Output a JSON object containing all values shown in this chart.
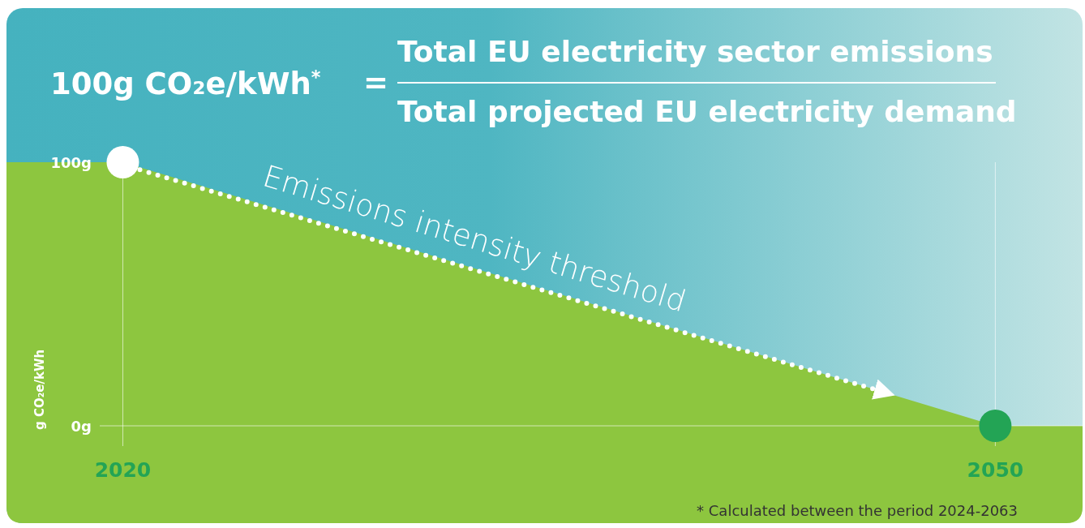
{
  "chart_data": {
    "type": "area",
    "title": "100g CO₂e/kWh$^{*}$",
    "ylabel": "g CO₂e/kWh",
    "annotations": [
      "=",
      "Total EU electricity sector emissions",
      "Total projected EU electricity demand",
      "Emissions intensity threshold",
      "* Calculated between the period 2024-2063"
    ],
    "x": [
      2016,
      2020,
      2050,
      2053
    ],
    "series": [
      {
        "color": "#8dc63f",
        "values": [
          100,
          100,
          0,
          0
        ]
      },
      {
        "type": "scatter",
        "x": [
          2020,
          2050
        ],
        "colors": [
          "#ffffff",
          "#23a455"
        ],
        "values": [
          100,
          0
        ]
      }
    ],
    "xlim": [
      2016,
      2053
    ],
    "ylim": [
      0,
      100
    ],
    "xticks": [
      2020,
      2050
    ],
    "yticks": [
      {
        "value": 100,
        "label": "100g"
      },
      {
        "value": 0,
        "label": "0g"
      }
    ],
    "grid": "x"
  }
}
